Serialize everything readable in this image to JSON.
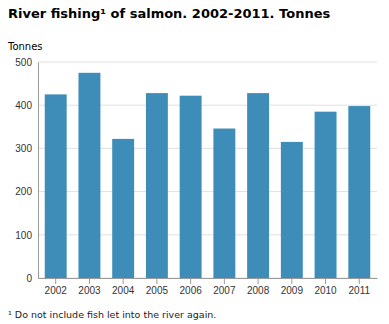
{
  "chart_data": {
    "type": "bar",
    "title": "River fishing¹ of salmon. 2002-2011. Tonnes",
    "ylabel": "Tonnes",
    "annotations": [
      "¹ Do not include fish let into the river again."
    ],
    "categories": [
      "2002",
      "2003",
      "2004",
      "2005",
      "2006",
      "2007",
      "2008",
      "2009",
      "2010",
      "2011"
    ],
    "values": [
      425,
      475,
      322,
      428,
      422,
      346,
      428,
      315,
      385,
      398
    ],
    "color": "#3d8db8",
    "ylim": [
      0,
      500
    ],
    "yticks": [
      0,
      100,
      200,
      300,
      400,
      500
    ],
    "grid": true
  }
}
